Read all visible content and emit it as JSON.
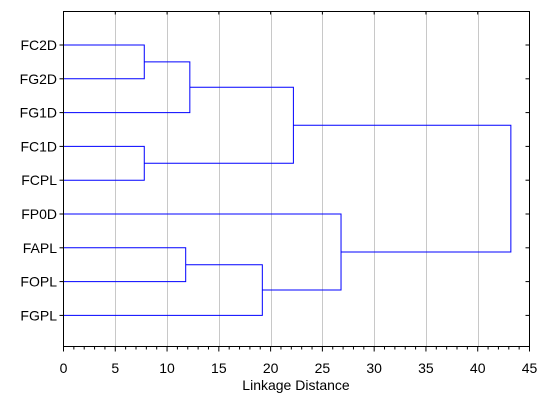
{
  "chart_data": {
    "type": "dendrogram",
    "orientation": "horizontal",
    "leaves": [
      "FC2D",
      "FG2D",
      "FG1D",
      "FC1D",
      "FCPL",
      "FP0D",
      "FAPL",
      "FOPL",
      "FGPL"
    ],
    "merges": [
      {
        "a": "FC2D",
        "b": "FG2D",
        "distance": 7.8
      },
      {
        "a": "FC1D",
        "b": "FCPL",
        "distance": 7.8
      },
      {
        "a": "FAPL",
        "b": "FOPL",
        "distance": 11.8
      },
      {
        "a": "FC2D+FG2D",
        "b": "FG1D",
        "distance": 12.2
      },
      {
        "a": "FAPL+FOPL",
        "b": "FGPL",
        "distance": 19.2
      },
      {
        "a": "FC2D+FG2D+FG1D",
        "b": "FC1D+FCPL",
        "distance": 22.2
      },
      {
        "a": "FP0D",
        "b": "FAPL+FOPL+FGPL",
        "distance": 26.8
      },
      {
        "a": "FC2D..FCPL",
        "b": "FP0D..FGPL",
        "distance": 43.2
      }
    ],
    "xlabel": "Linkage Distance",
    "xlim": [
      0,
      45
    ],
    "xticks": [
      "0",
      "5",
      "10",
      "15",
      "20",
      "25",
      "30",
      "35",
      "40",
      "45"
    ],
    "grid": true,
    "line_color": "#0000ff",
    "grid_color": "#c8c8c8"
  }
}
